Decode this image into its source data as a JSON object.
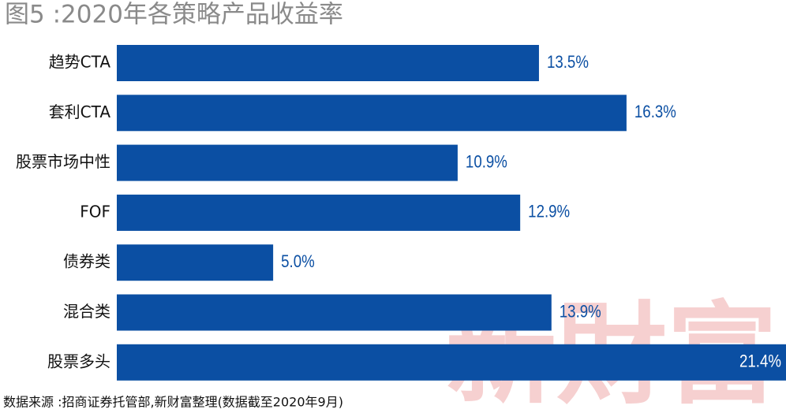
{
  "chart_data": {
    "type": "bar",
    "orientation": "horizontal",
    "title": "图5 :2020年各策略产品收益率",
    "categories": [
      "趋势CTA",
      "套利CTA",
      "股票市场中性",
      "FOF",
      "债券类",
      "混合类",
      "股票多头"
    ],
    "values": [
      13.5,
      16.3,
      10.9,
      12.9,
      5.0,
      13.9,
      21.4
    ],
    "value_labels": [
      "13.5%",
      "16.3%",
      "10.9%",
      "12.9%",
      "5.0%",
      "13.9%",
      "21.4%"
    ],
    "color": "#0b4fa3",
    "source": "数据来源 :招商证券托管部,新财富整理(数据截至2020年9月)",
    "watermark": "新財富"
  }
}
